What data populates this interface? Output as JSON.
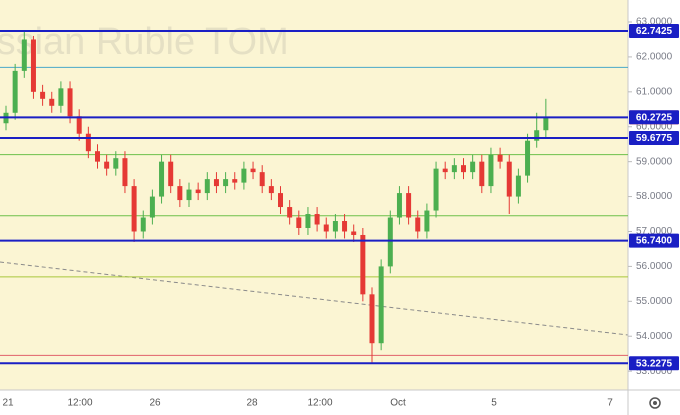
{
  "chart_data": {
    "type": "candlestick",
    "title": "Russian Ruble TOM",
    "open": [
      60.1,
      60.4,
      61.6,
      62.5,
      61.0,
      60.8,
      60.6,
      61.1,
      60.3,
      59.8,
      59.3,
      59.0,
      58.8,
      59.1,
      58.3,
      57.0,
      57.4,
      58.0,
      59.0,
      58.3,
      57.9,
      58.2,
      58.1,
      58.5,
      58.3,
      58.5,
      58.4,
      58.8,
      58.7,
      58.3,
      58.1,
      57.7,
      57.4,
      57.1,
      57.5,
      57.2,
      57.0,
      57.3,
      57.0,
      56.9,
      55.2,
      53.8,
      56.0,
      57.4,
      58.1,
      57.4,
      57.0,
      57.6,
      58.8,
      58.7,
      58.9,
      58.7,
      59.0,
      58.3,
      59.2,
      59.0,
      58.0,
      58.6,
      59.6,
      59.9
    ],
    "high": [
      60.6,
      61.8,
      62.75,
      62.6,
      61.2,
      61.0,
      61.3,
      61.3,
      60.5,
      60.0,
      59.5,
      59.2,
      59.3,
      59.3,
      58.5,
      57.6,
      58.2,
      59.2,
      59.2,
      58.5,
      58.4,
      58.4,
      58.7,
      58.7,
      58.7,
      58.7,
      59.0,
      59.0,
      58.9,
      58.5,
      58.3,
      57.9,
      57.6,
      57.7,
      57.7,
      57.4,
      57.5,
      57.5,
      57.2,
      57.1,
      55.4,
      56.2,
      57.6,
      58.3,
      58.3,
      57.6,
      57.8,
      59.0,
      59.0,
      59.1,
      59.1,
      59.2,
      59.2,
      59.4,
      59.4,
      59.2,
      58.8,
      59.8,
      60.4,
      60.8
    ],
    "low": [
      59.9,
      60.2,
      61.4,
      60.8,
      60.6,
      60.4,
      60.4,
      60.1,
      59.6,
      59.1,
      58.8,
      58.6,
      58.6,
      58.1,
      56.7,
      56.8,
      57.2,
      57.8,
      58.1,
      57.7,
      57.7,
      57.9,
      57.9,
      58.1,
      58.1,
      58.2,
      58.2,
      58.5,
      58.1,
      57.9,
      57.5,
      57.2,
      56.9,
      56.9,
      57.0,
      56.8,
      56.8,
      56.8,
      56.7,
      55.0,
      53.25,
      53.6,
      55.8,
      57.2,
      57.2,
      56.8,
      56.8,
      57.4,
      58.5,
      58.5,
      58.5,
      58.5,
      58.1,
      58.1,
      58.8,
      57.5,
      57.8,
      58.4,
      59.4,
      59.7
    ],
    "close": [
      60.4,
      61.6,
      62.5,
      61.0,
      60.8,
      60.6,
      61.1,
      60.3,
      59.8,
      59.3,
      59.0,
      58.8,
      59.1,
      58.3,
      57.0,
      57.4,
      58.0,
      59.0,
      58.3,
      57.9,
      58.2,
      58.1,
      58.5,
      58.3,
      58.5,
      58.4,
      58.8,
      58.7,
      58.3,
      58.1,
      57.7,
      57.4,
      57.1,
      57.5,
      57.2,
      57.0,
      57.3,
      57.0,
      56.9,
      55.2,
      53.8,
      56.0,
      57.4,
      58.1,
      57.4,
      57.0,
      57.6,
      58.8,
      58.7,
      58.9,
      58.7,
      59.0,
      58.3,
      59.2,
      59.0,
      58.0,
      58.6,
      59.6,
      59.9,
      60.27
    ],
    "up_color": "#4caf50",
    "down_color": "#e53935",
    "x_labels": [
      "21",
      "12:00",
      "26",
      "28",
      "12:00",
      "Oct",
      "5",
      "7"
    ],
    "ylim": [
      52.46,
      63.63
    ],
    "yticks": [
      {
        "value": 63,
        "label": "63.0000"
      },
      {
        "value": 62,
        "label": "62.0000"
      },
      {
        "value": 61,
        "label": "61.0000"
      },
      {
        "value": 60,
        "label": "60.0000"
      },
      {
        "value": 59,
        "label": "59.0000"
      },
      {
        "value": 58,
        "label": "58.0000"
      },
      {
        "value": 57,
        "label": "57.0000"
      },
      {
        "value": 56,
        "label": "56.0000"
      },
      {
        "value": 55,
        "label": "55.0000"
      },
      {
        "value": 54,
        "label": "54.0000"
      },
      {
        "value": 53,
        "label": "53.0000"
      }
    ],
    "levels": [
      {
        "value": 62.7425,
        "color": "#1a1fc4"
      },
      {
        "value": 60.2675,
        "color": "#1a1fc4",
        "label_color": "#e84545"
      },
      {
        "value": 59.6775,
        "color": "#1a1fc4"
      },
      {
        "value": {
          "value": 56.74,
          "label": "56.7400"
        },
        "color": "#1a1fc4"
      },
      {
        "value": 53.2275,
        "color": "#1a1fc4"
      }
    ],
    "price_marker": {
      "value": 60.2725,
      "color": "#1a1fc4"
    },
    "thin_lines": [
      {
        "value": 61.7,
        "color": "#4aa8c8"
      },
      {
        "value": 59.2,
        "color": "#6cc04a"
      },
      {
        "value": 57.45,
        "color": "#6cc04a"
      },
      {
        "value": 55.7,
        "color": "#a8c83c"
      },
      {
        "value": 53.45,
        "color": "#e0606a"
      }
    ]
  }
}
